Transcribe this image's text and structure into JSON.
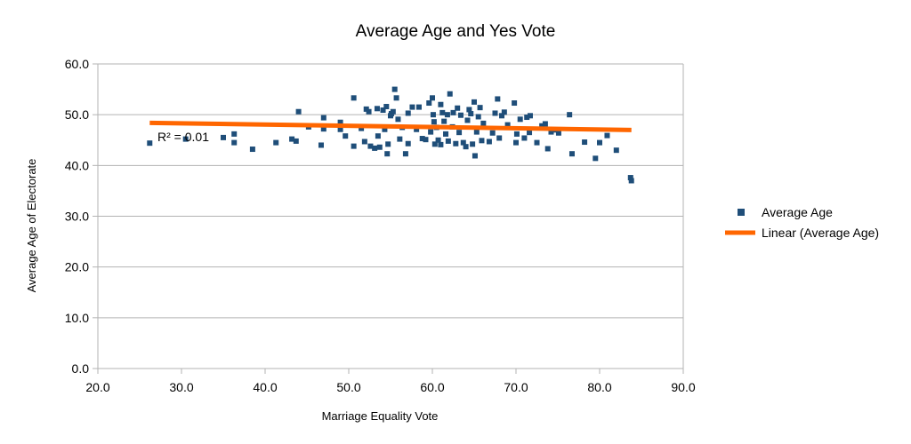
{
  "chart_data": {
    "type": "scatter",
    "title": "Average Age and Yes Vote",
    "xlabel": "Marriage Equality Vote",
    "ylabel": "Average Age of Electorate",
    "xlim": [
      20,
      90
    ],
    "ylim": [
      0,
      60
    ],
    "x_ticks": [
      "20.0",
      "30.0",
      "40.0",
      "50.0",
      "60.0",
      "70.0",
      "80.0",
      "90.0"
    ],
    "y_ticks": [
      "0.0",
      "10.0",
      "20.0",
      "30.0",
      "40.0",
      "50.0",
      "60.0"
    ],
    "grid": "horizontal",
    "legend_position": "right",
    "series": [
      {
        "name": "Average Age",
        "color": "#1f4e79",
        "marker": "square",
        "points": [
          [
            26.2,
            44.4
          ],
          [
            30.5,
            45.2
          ],
          [
            35.0,
            45.5
          ],
          [
            36.3,
            46.2
          ],
          [
            36.3,
            44.5
          ],
          [
            38.5,
            43.2
          ],
          [
            41.3,
            44.5
          ],
          [
            43.2,
            45.2
          ],
          [
            43.7,
            44.8
          ],
          [
            44.0,
            50.6
          ],
          [
            45.2,
            47.6
          ],
          [
            46.7,
            44.0
          ],
          [
            47.0,
            47.2
          ],
          [
            47.0,
            49.4
          ],
          [
            49.0,
            48.5
          ],
          [
            49.0,
            47.1
          ],
          [
            49.6,
            45.8
          ],
          [
            50.6,
            53.3
          ],
          [
            50.6,
            43.8
          ],
          [
            51.5,
            47.3
          ],
          [
            51.9,
            44.7
          ],
          [
            52.1,
            51.1
          ],
          [
            52.4,
            50.6
          ],
          [
            52.6,
            43.8
          ],
          [
            53.1,
            43.4
          ],
          [
            53.4,
            51.2
          ],
          [
            53.5,
            45.8
          ],
          [
            53.7,
            43.6
          ],
          [
            54.1,
            50.9
          ],
          [
            54.3,
            47.1
          ],
          [
            54.5,
            51.6
          ],
          [
            54.6,
            42.3
          ],
          [
            54.7,
            44.2
          ],
          [
            55.0,
            49.8
          ],
          [
            55.1,
            50.2
          ],
          [
            55.3,
            50.6
          ],
          [
            55.5,
            55.0
          ],
          [
            55.7,
            53.3
          ],
          [
            55.9,
            49.1
          ],
          [
            56.1,
            45.2
          ],
          [
            56.4,
            47.5
          ],
          [
            56.8,
            42.3
          ],
          [
            57.1,
            50.3
          ],
          [
            57.1,
            44.3
          ],
          [
            57.6,
            51.5
          ],
          [
            58.1,
            47.1
          ],
          [
            58.4,
            51.5
          ],
          [
            58.8,
            45.3
          ],
          [
            59.2,
            45.1
          ],
          [
            59.6,
            52.3
          ],
          [
            59.8,
            46.6
          ],
          [
            60.0,
            53.3
          ],
          [
            60.1,
            50.0
          ],
          [
            60.2,
            48.6
          ],
          [
            60.3,
            44.2
          ],
          [
            60.5,
            47.5
          ],
          [
            60.7,
            45.0
          ],
          [
            61.0,
            52.0
          ],
          [
            61.0,
            44.1
          ],
          [
            61.2,
            50.4
          ],
          [
            61.4,
            48.7
          ],
          [
            61.6,
            46.2
          ],
          [
            61.8,
            50.0
          ],
          [
            61.9,
            44.8
          ],
          [
            62.1,
            54.1
          ],
          [
            62.4,
            47.6
          ],
          [
            62.5,
            50.4
          ],
          [
            62.8,
            44.3
          ],
          [
            63.0,
            51.3
          ],
          [
            63.2,
            46.5
          ],
          [
            63.4,
            49.9
          ],
          [
            63.7,
            44.5
          ],
          [
            64.0,
            43.7
          ],
          [
            64.2,
            48.9
          ],
          [
            64.4,
            51.0
          ],
          [
            64.6,
            50.2
          ],
          [
            64.8,
            44.2
          ],
          [
            65.0,
            52.5
          ],
          [
            65.1,
            41.9
          ],
          [
            65.3,
            46.6
          ],
          [
            65.5,
            49.6
          ],
          [
            65.7,
            51.4
          ],
          [
            65.9,
            44.9
          ],
          [
            66.1,
            48.3
          ],
          [
            66.8,
            44.7
          ],
          [
            67.2,
            46.4
          ],
          [
            67.5,
            50.3
          ],
          [
            67.8,
            53.1
          ],
          [
            68.0,
            45.4
          ],
          [
            68.3,
            49.8
          ],
          [
            68.6,
            50.5
          ],
          [
            69.0,
            48.0
          ],
          [
            69.8,
            52.3
          ],
          [
            70.0,
            44.5
          ],
          [
            70.1,
            46.2
          ],
          [
            70.5,
            49.1
          ],
          [
            71.0,
            45.4
          ],
          [
            71.3,
            49.5
          ],
          [
            71.6,
            46.5
          ],
          [
            71.7,
            49.8
          ],
          [
            72.5,
            44.5
          ],
          [
            73.1,
            47.8
          ],
          [
            73.5,
            48.2
          ],
          [
            73.8,
            43.3
          ],
          [
            74.2,
            46.6
          ],
          [
            74.6,
            47.0
          ],
          [
            75.1,
            46.4
          ],
          [
            76.4,
            50.0
          ],
          [
            76.7,
            42.3
          ],
          [
            78.2,
            44.6
          ],
          [
            79.5,
            41.4
          ],
          [
            80.0,
            44.5
          ],
          [
            80.9,
            45.9
          ],
          [
            82.0,
            43.0
          ],
          [
            83.7,
            37.6
          ],
          [
            83.8,
            37.0
          ]
        ]
      },
      {
        "name": "Linear (Average Age)",
        "color": "#ff6600",
        "type": "trendline",
        "x_start": 26.2,
        "x_end": 83.8,
        "y_start": 48.4,
        "y_end": 47.0
      }
    ],
    "r_squared_label": "R² = 0.01"
  }
}
